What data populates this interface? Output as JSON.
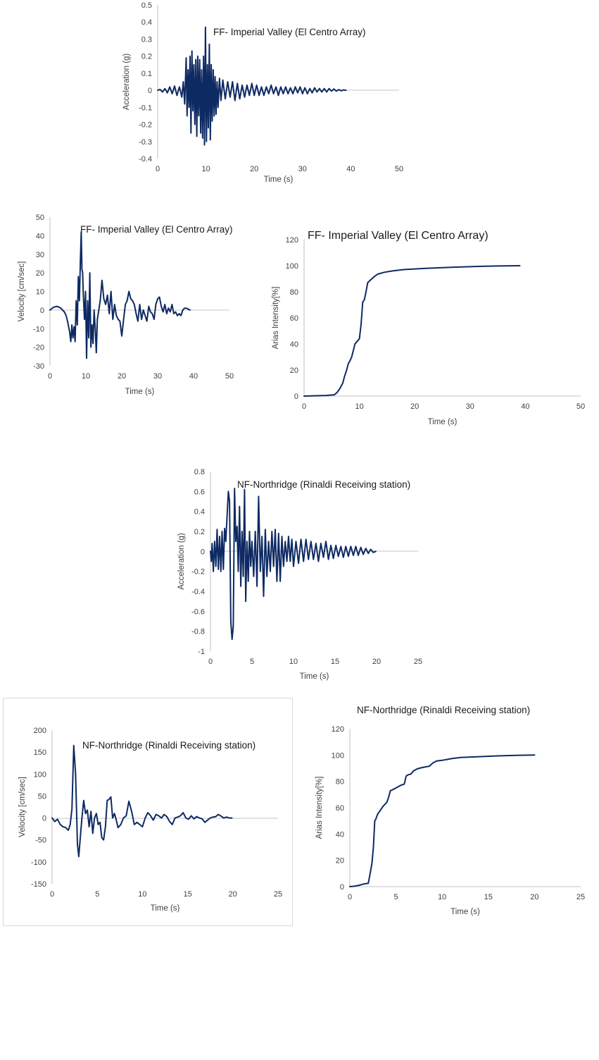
{
  "chart_data": [
    {
      "id": "ff-acc",
      "type": "line",
      "title": "FF- Imperial Valley (El Centro Array)",
      "xlabel": "Time (s)",
      "ylabel": "Acceleration (g)",
      "xlim": [
        0,
        50
      ],
      "ylim": [
        -0.4,
        0.5
      ],
      "xticks": [
        0,
        10,
        20,
        30,
        40,
        50
      ],
      "yticks": [
        -0.4,
        -0.3,
        -0.2,
        -0.1,
        0,
        0.1,
        0.2,
        0.3,
        0.4,
        0.5
      ],
      "ytick_labels": [
        "-0.4",
        "-0.3",
        "-0.2",
        "-0.1",
        "0",
        "0.1",
        "0.2",
        "0.3",
        "0.4",
        "0.5"
      ],
      "grid": false,
      "series": [
        {
          "name": "Acceleration",
          "color": "#0e2a63",
          "x": [
            0,
            0.5,
            1,
            1.5,
            2,
            2.5,
            3,
            3.5,
            4,
            4.5,
            5,
            5.3,
            5.6,
            5.9,
            6.1,
            6.3,
            6.5,
            6.7,
            6.9,
            7.1,
            7.3,
            7.5,
            7.7,
            7.9,
            8.1,
            8.3,
            8.5,
            8.7,
            8.9,
            9.1,
            9.3,
            9.5,
            9.7,
            9.9,
            10.1,
            10.3,
            10.5,
            10.7,
            10.9,
            11.1,
            11.3,
            11.5,
            11.7,
            11.9,
            12.1,
            12.3,
            12.5,
            12.8,
            13.1,
            13.5,
            14,
            14.5,
            15,
            15.5,
            16,
            16.5,
            17,
            17.5,
            18,
            18.5,
            19,
            19.5,
            20,
            20.5,
            21,
            21.5,
            22,
            22.5,
            23,
            23.5,
            24,
            24.5,
            25,
            25.5,
            26,
            26.5,
            27,
            27.5,
            28,
            28.5,
            29,
            29.5,
            30,
            30.5,
            31,
            31.5,
            32,
            32.5,
            33,
            33.5,
            34,
            34.5,
            35,
            35.5,
            36,
            36.5,
            37,
            37.5,
            38,
            38.5,
            39
          ],
          "y": [
            0,
            0.005,
            -0.01,
            0.01,
            -0.015,
            0.02,
            -0.02,
            0.025,
            -0.03,
            0.02,
            -0.04,
            0.05,
            -0.08,
            0.19,
            -0.15,
            0.12,
            -0.1,
            0.2,
            -0.25,
            0.23,
            -0.12,
            0.15,
            -0.2,
            0.18,
            -0.27,
            0.2,
            -0.15,
            0.18,
            -0.25,
            0.12,
            -0.28,
            0.2,
            -0.32,
            0.37,
            -0.3,
            0.15,
            -0.22,
            0.27,
            -0.29,
            0.15,
            -0.18,
            0.12,
            -0.15,
            0.08,
            -0.14,
            0.05,
            -0.1,
            0.07,
            -0.06,
            0.06,
            -0.05,
            0.05,
            -0.04,
            0.05,
            -0.06,
            0.04,
            -0.05,
            0.03,
            -0.04,
            0.03,
            -0.03,
            0.04,
            -0.03,
            0.03,
            -0.03,
            0.02,
            -0.03,
            0.02,
            -0.02,
            0.03,
            -0.02,
            0.02,
            -0.03,
            0.02,
            -0.02,
            0.02,
            -0.02,
            0.015,
            -0.02,
            0.02,
            -0.015,
            0.02,
            -0.02,
            0.015,
            -0.02,
            0.01,
            -0.015,
            0.015,
            -0.01,
            0.01,
            -0.01,
            0.01,
            -0.01,
            0.01,
            -0.005,
            0.008,
            -0.005,
            0.004,
            -0.003,
            0.002,
            0
          ]
        }
      ]
    },
    {
      "id": "ff-vel",
      "type": "line",
      "title": "FF- Imperial Valley (El Centro Array)",
      "xlabel": "Time (s)",
      "ylabel": "Velocity [cm/sec]",
      "xlim": [
        0,
        50
      ],
      "ylim": [
        -30,
        50
      ],
      "xticks": [
        0,
        10,
        20,
        30,
        40,
        50
      ],
      "yticks": [
        -30,
        -20,
        -10,
        0,
        10,
        20,
        30,
        40,
        50
      ],
      "ytick_labels": [
        "-30",
        "-20",
        "-10",
        "0",
        "10",
        "20",
        "30",
        "40",
        "50"
      ],
      "grid": false,
      "series": [
        {
          "name": "Velocity",
          "color": "#0e2a63",
          "x": [
            0,
            1,
            2,
            3,
            4,
            4.5,
            5,
            5.5,
            5.8,
            6.1,
            6.4,
            6.7,
            7,
            7.3,
            7.6,
            7.9,
            8.2,
            8.5,
            8.7,
            8.9,
            9.1,
            9.3,
            9.6,
            9.9,
            10.2,
            10.5,
            10.8,
            11.1,
            11.4,
            11.7,
            12,
            12.3,
            12.6,
            12.9,
            13.2,
            13.6,
            14,
            14.5,
            15,
            15.5,
            16,
            16.5,
            17,
            17.5,
            18,
            18.5,
            19,
            19.5,
            20,
            20.5,
            21,
            21.5,
            22,
            22.5,
            23,
            23.5,
            24,
            24.5,
            25,
            25.5,
            26,
            26.5,
            27,
            27.5,
            28,
            28.5,
            29,
            29.5,
            30,
            30.5,
            31,
            31.5,
            32,
            32.5,
            33,
            33.5,
            34,
            34.5,
            35,
            35.5,
            36,
            36.5,
            37,
            37.5,
            38,
            38.5,
            39
          ],
          "y": [
            0,
            1.5,
            2,
            1,
            -1,
            -3,
            -7,
            -12,
            -17,
            -8,
            -15,
            -9,
            -17,
            5,
            -8,
            18,
            5,
            28,
            42,
            22,
            20,
            8,
            -5,
            10,
            -26,
            5,
            -15,
            20,
            -20,
            -8,
            -18,
            0,
            -10,
            -23,
            -5,
            0,
            5,
            16,
            6,
            3,
            8,
            -2,
            10,
            -5,
            3,
            -3,
            -5,
            -6,
            -14,
            -5,
            3,
            5,
            10,
            6,
            5,
            3,
            -2,
            -6,
            3,
            -5,
            0,
            -3,
            -6,
            2,
            -1,
            -2,
            -5,
            3,
            6,
            7,
            2,
            -1,
            3,
            -2,
            1,
            -1,
            3,
            -2,
            -1,
            -3,
            -2,
            -3,
            0,
            1,
            1,
            0.5,
            0
          ]
        }
      ]
    },
    {
      "id": "ff-arias",
      "type": "line",
      "title": "FF- Imperial Valley (El Centro Array)",
      "xlabel": "Time (s)",
      "ylabel": "Arias Intensity[%]",
      "xlim": [
        0,
        50
      ],
      "ylim": [
        0,
        120
      ],
      "xticks": [
        0,
        10,
        20,
        30,
        40,
        50
      ],
      "yticks": [
        0,
        20,
        40,
        60,
        80,
        100,
        120
      ],
      "ytick_labels": [
        "0",
        "20",
        "40",
        "60",
        "80",
        "100",
        "120"
      ],
      "grid": false,
      "series": [
        {
          "name": "Arias Intensity",
          "color": "#0e2a63",
          "x": [
            0,
            4,
            5.5,
            6,
            6.5,
            7,
            7.3,
            7.7,
            8,
            8.3,
            8.6,
            8.9,
            9.2,
            9.6,
            10,
            10.3,
            10.6,
            10.9,
            11.2,
            11.5,
            12,
            12.5,
            13.3,
            14.5,
            16,
            18,
            20,
            22,
            25,
            28,
            32,
            35,
            39
          ],
          "y": [
            0,
            0.5,
            1,
            3,
            6,
            10,
            15,
            20,
            25,
            27,
            30,
            35,
            40,
            42,
            44,
            55,
            72,
            74,
            80,
            87,
            89,
            91,
            93.5,
            95,
            96,
            97,
            97.5,
            98,
            98.5,
            99,
            99.5,
            99.8,
            100
          ]
        }
      ]
    },
    {
      "id": "nf-acc",
      "type": "line",
      "title": "NF-Northridge (Rinaldi Receiving station)",
      "xlabel": "Time (s)",
      "ylabel": "Acceleration (g)",
      "xlim": [
        0,
        25
      ],
      "ylim": [
        -1,
        0.8
      ],
      "xticks": [
        0,
        5,
        10,
        15,
        20,
        25
      ],
      "yticks": [
        -1,
        -0.8,
        -0.6,
        -0.4,
        -0.2,
        0,
        0.2,
        0.4,
        0.6,
        0.8
      ],
      "ytick_labels": [
        "-1",
        "-0.8",
        "-0.6",
        "-0.4",
        "-0.2",
        "0",
        "0.2",
        "0.4",
        "0.6",
        "0.8"
      ],
      "grid": false,
      "series": [
        {
          "name": "Acceleration",
          "color": "#0e2a63",
          "x": [
            0,
            0.1,
            0.2,
            0.35,
            0.5,
            0.65,
            0.8,
            0.95,
            1.1,
            1.25,
            1.4,
            1.55,
            1.7,
            1.85,
            2,
            2.15,
            2.3,
            2.45,
            2.6,
            2.75,
            2.9,
            3.05,
            3.2,
            3.35,
            3.5,
            3.65,
            3.8,
            3.95,
            4.1,
            4.25,
            4.4,
            4.55,
            4.7,
            4.85,
            5,
            5.2,
            5.4,
            5.6,
            5.8,
            6,
            6.2,
            6.4,
            6.6,
            6.8,
            7,
            7.2,
            7.4,
            7.6,
            7.8,
            8,
            8.2,
            8.4,
            8.6,
            8.8,
            9,
            9.2,
            9.4,
            9.6,
            9.8,
            10,
            10.3,
            10.6,
            10.9,
            11.2,
            11.5,
            11.8,
            12.1,
            12.4,
            12.7,
            13,
            13.3,
            13.6,
            13.9,
            14.2,
            14.5,
            14.8,
            15.1,
            15.4,
            15.7,
            16,
            16.3,
            16.6,
            16.9,
            17.2,
            17.5,
            17.8,
            18.1,
            18.4,
            18.7,
            19,
            19.3,
            19.6,
            19.9
          ],
          "y": [
            0,
            -0.1,
            0.08,
            -0.2,
            0.1,
            -0.15,
            0.22,
            -0.18,
            0.15,
            -0.2,
            0.2,
            -0.18,
            0.23,
            0.1,
            0.35,
            0.6,
            0.5,
            -0.7,
            -0.88,
            -0.75,
            0.63,
            0.1,
            0.25,
            -0.2,
            0.45,
            -0.35,
            0.2,
            -0.25,
            0.62,
            -0.5,
            0.1,
            -0.3,
            0.2,
            -0.15,
            0.1,
            -0.25,
            0.2,
            -0.35,
            0.55,
            -0.2,
            0.15,
            -0.45,
            0.22,
            -0.25,
            0.1,
            -0.2,
            0.2,
            -0.15,
            0.22,
            -0.3,
            0.18,
            -0.3,
            0.15,
            -0.15,
            0.1,
            -0.1,
            0.15,
            -0.1,
            0.12,
            -0.15,
            0.1,
            -0.12,
            0.12,
            -0.1,
            0.12,
            -0.08,
            0.1,
            -0.08,
            0.08,
            -0.1,
            0.08,
            -0.06,
            0.1,
            -0.08,
            0.06,
            -0.07,
            0.06,
            -0.05,
            0.05,
            -0.06,
            0.05,
            -0.05,
            0.05,
            -0.04,
            0.05,
            -0.04,
            0.04,
            -0.03,
            0.03,
            -0.02,
            0.02,
            -0.01,
            0
          ]
        }
      ]
    },
    {
      "id": "nf-vel",
      "type": "line",
      "title": "NF-Northridge (Rinaldi Receiving station)",
      "xlabel": "Time (s)",
      "ylabel": "Velocity [cm/sec]",
      "xlim": [
        0,
        25
      ],
      "ylim": [
        -150,
        200
      ],
      "xticks": [
        0,
        5,
        10,
        15,
        20,
        25
      ],
      "yticks": [
        -150,
        -100,
        -50,
        0,
        50,
        100,
        150,
        200
      ],
      "ytick_labels": [
        "-150",
        "-100",
        "-50",
        "0",
        "50",
        "100",
        "150",
        "200"
      ],
      "grid": false,
      "series": [
        {
          "name": "Velocity",
          "color": "#0e2a63",
          "x": [
            0,
            0.3,
            0.6,
            0.9,
            1.2,
            1.5,
            1.8,
            2.0,
            2.2,
            2.4,
            2.6,
            2.8,
            2.95,
            3.1,
            3.3,
            3.5,
            3.7,
            3.9,
            4.1,
            4.3,
            4.5,
            4.7,
            4.9,
            5.1,
            5.3,
            5.5,
            5.7,
            5.9,
            6.1,
            6.3,
            6.5,
            6.7,
            6.9,
            7.1,
            7.3,
            7.6,
            7.9,
            8.2,
            8.5,
            8.8,
            9.1,
            9.4,
            9.7,
            10,
            10.3,
            10.6,
            10.9,
            11.2,
            11.5,
            11.8,
            12.1,
            12.4,
            12.7,
            13,
            13.3,
            13.6,
            13.9,
            14.2,
            14.5,
            14.8,
            15.1,
            15.4,
            15.7,
            16,
            16.3,
            16.6,
            16.9,
            17.2,
            17.5,
            17.8,
            18.1,
            18.4,
            18.7,
            19,
            19.3,
            19.6,
            19.9
          ],
          "y": [
            0,
            -8,
            -3,
            -15,
            -20,
            -22,
            -28,
            -15,
            20,
            165,
            100,
            -60,
            -88,
            -50,
            0,
            40,
            10,
            18,
            -20,
            15,
            -35,
            0,
            10,
            -15,
            -10,
            -45,
            -50,
            -20,
            40,
            42,
            48,
            0,
            10,
            -5,
            -22,
            -15,
            0,
            5,
            38,
            15,
            -15,
            -10,
            -15,
            -20,
            0,
            12,
            5,
            -5,
            8,
            5,
            0,
            8,
            3,
            -8,
            -15,
            0,
            2,
            5,
            12,
            0,
            -3,
            5,
            -2,
            3,
            0,
            -2,
            -10,
            -5,
            0,
            2,
            3,
            8,
            4,
            0,
            2,
            0,
            0
          ]
        }
      ]
    },
    {
      "id": "nf-arias",
      "type": "line",
      "title": "NF-Northridge (Rinaldi Receiving station)",
      "xlabel": "Time (s)",
      "ylabel": "Arias Intensity[%]",
      "xlim": [
        0,
        25
      ],
      "ylim": [
        0,
        120
      ],
      "xticks": [
        0,
        5,
        10,
        15,
        20,
        25
      ],
      "yticks": [
        0,
        20,
        40,
        60,
        80,
        100,
        120
      ],
      "ytick_labels": [
        "0",
        "20",
        "40",
        "60",
        "80",
        "100",
        "120"
      ],
      "grid": false,
      "series": [
        {
          "name": "Arias Intensity",
          "color": "#0e2a63",
          "x": [
            0,
            0.5,
            1,
            1.5,
            2,
            2.2,
            2.4,
            2.55,
            2.7,
            2.8,
            3,
            3.3,
            3.6,
            4,
            4.2,
            4.4,
            4.6,
            5,
            5.5,
            5.9,
            6.1,
            6.3,
            6.6,
            6.9,
            7.3,
            7.8,
            8.2,
            8.6,
            9,
            9.4,
            10,
            11,
            12,
            14,
            16,
            18,
            20
          ],
          "y": [
            0,
            0.3,
            1,
            2,
            2.5,
            10,
            18,
            30,
            50,
            51,
            55,
            58,
            61,
            64,
            68,
            73,
            73.5,
            75,
            77,
            78,
            84,
            85,
            85.5,
            88,
            89.5,
            90.5,
            91,
            91.5,
            94,
            95.5,
            96,
            97.3,
            98.2,
            98.8,
            99.4,
            99.8,
            100
          ]
        }
      ]
    }
  ]
}
